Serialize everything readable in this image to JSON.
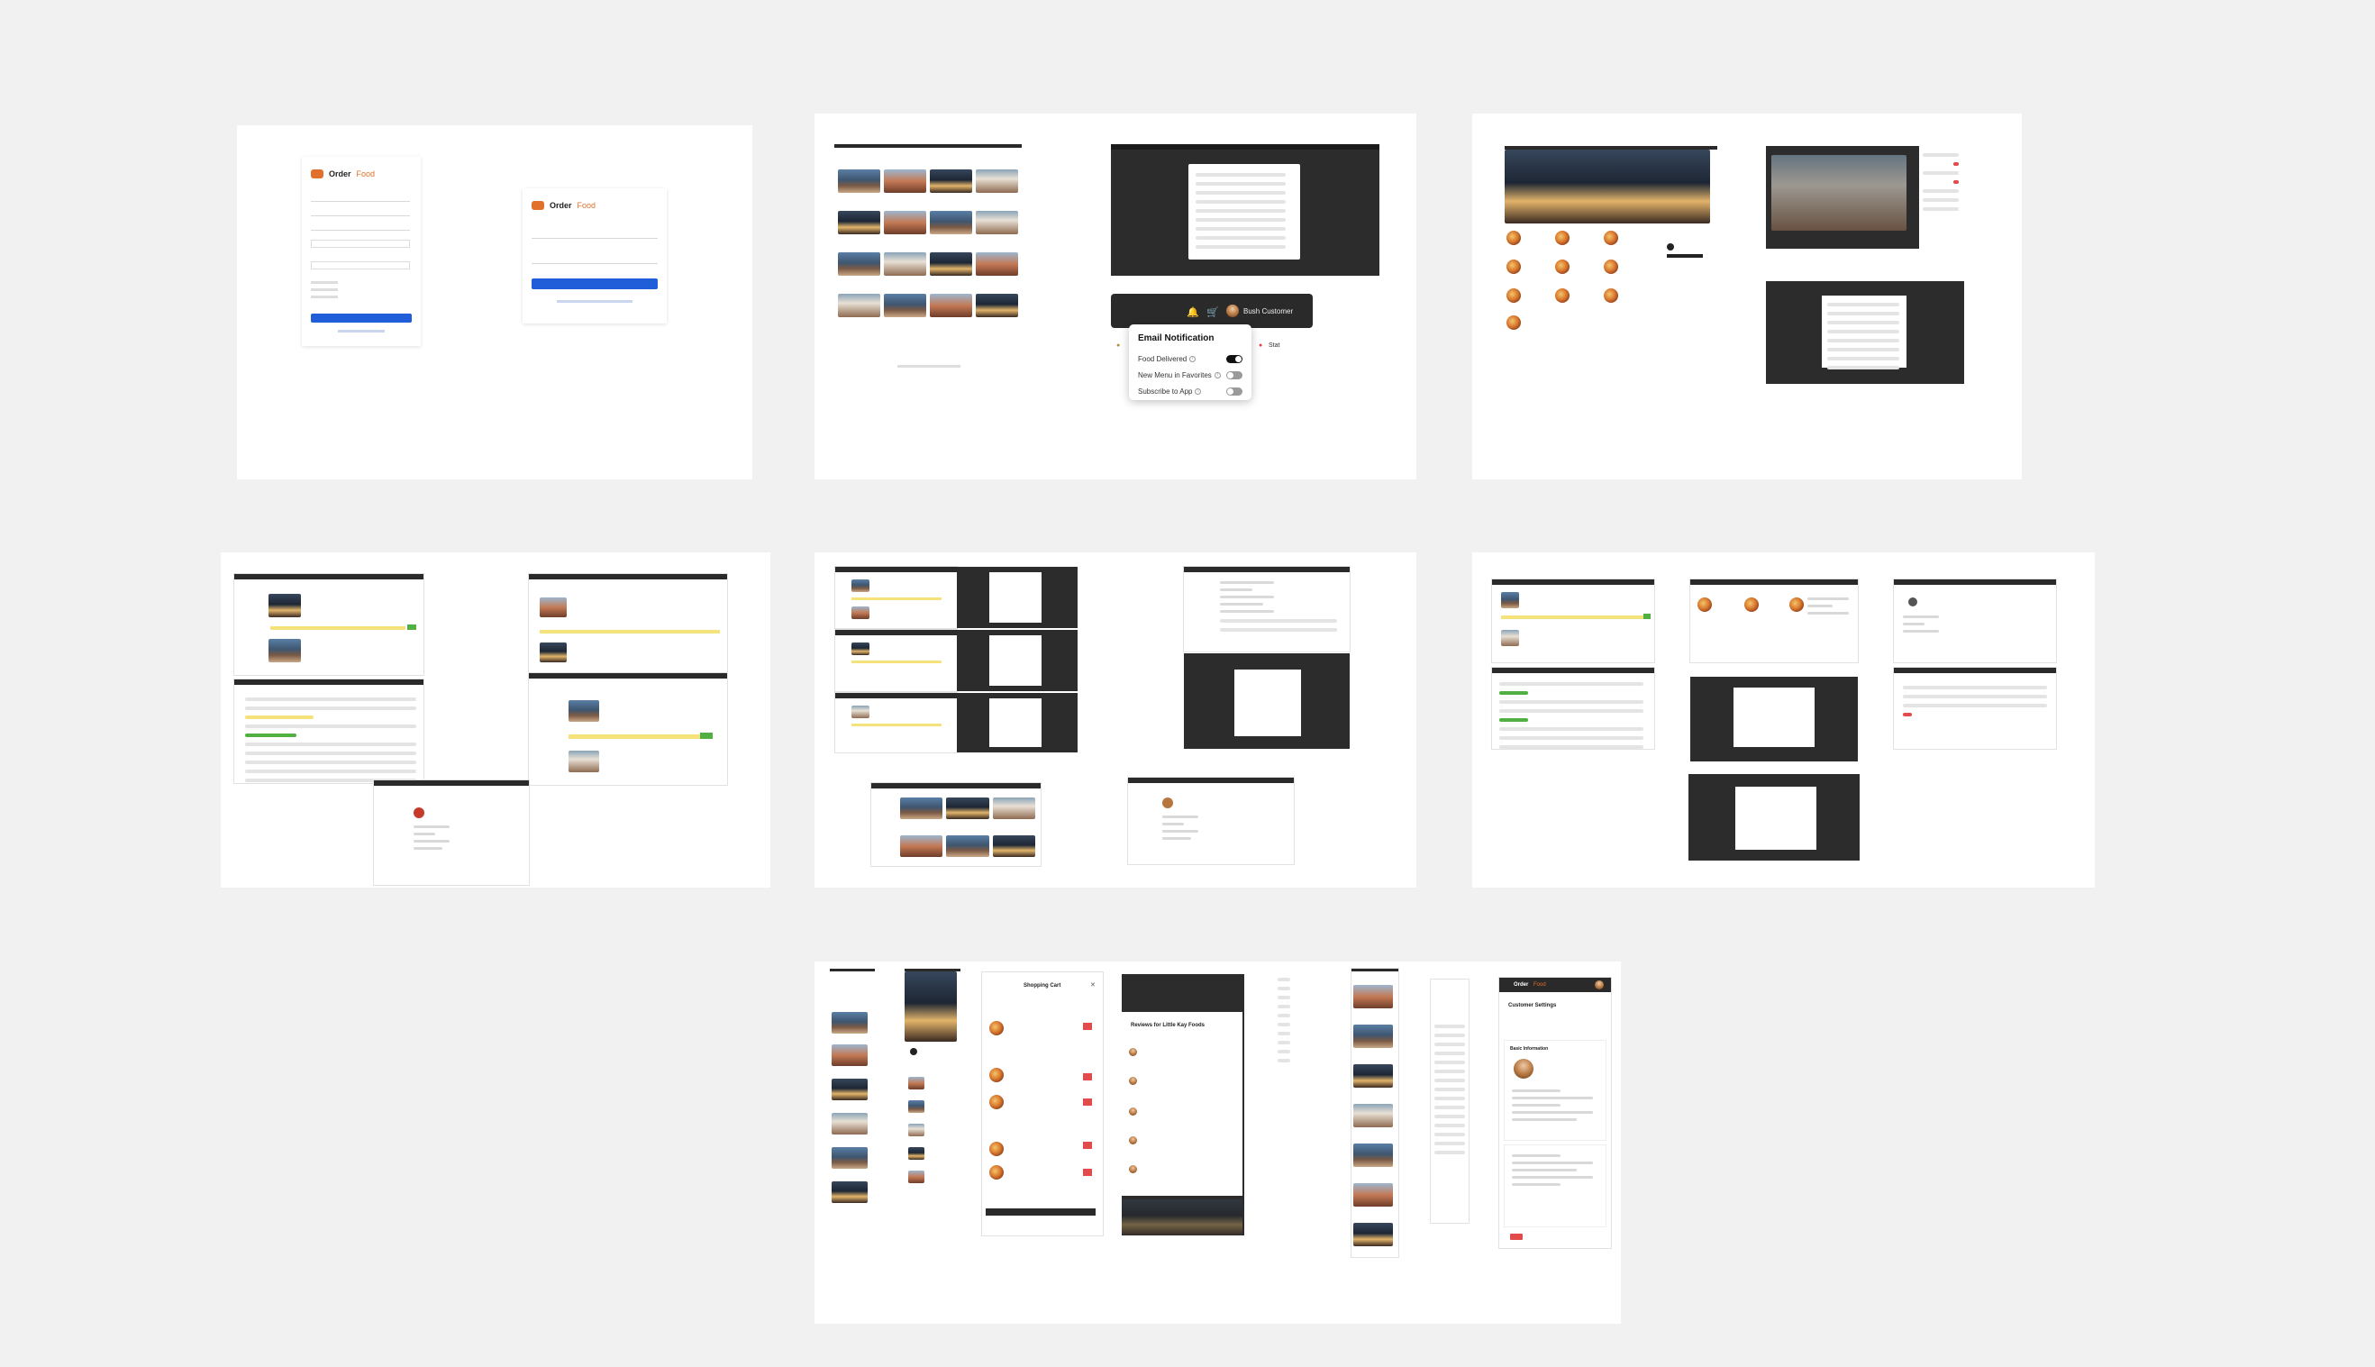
{
  "login": {
    "brand_name": "Order",
    "brand_suffix": "Food",
    "button_label": "",
    "link_text": ""
  },
  "notification": {
    "user_name": "Bush Customer",
    "title": "Email Notification",
    "items": [
      {
        "label": "Food Delivered",
        "on": true
      },
      {
        "label": "New Menu in Favorites",
        "on": false
      },
      {
        "label": "Subscribe to App",
        "on": false
      }
    ],
    "side_text": "Stat"
  },
  "review": {
    "title": "Reviews for Little Kay Foods"
  },
  "order": {
    "title": "Shopping Cart"
  },
  "profile": {
    "brand": "Order",
    "brand_suffix": "Food",
    "title": "Customer Settings",
    "section": "Basic Information"
  },
  "colors": {
    "background": "#f1f1f1",
    "accent": "#e0702a",
    "primary_button": "#1f5ed8",
    "dark_nav": "#2a2a2a",
    "badge_yellow": "#f5e27a",
    "badge_green": "#52b043",
    "badge_red": "#e24b4b"
  }
}
